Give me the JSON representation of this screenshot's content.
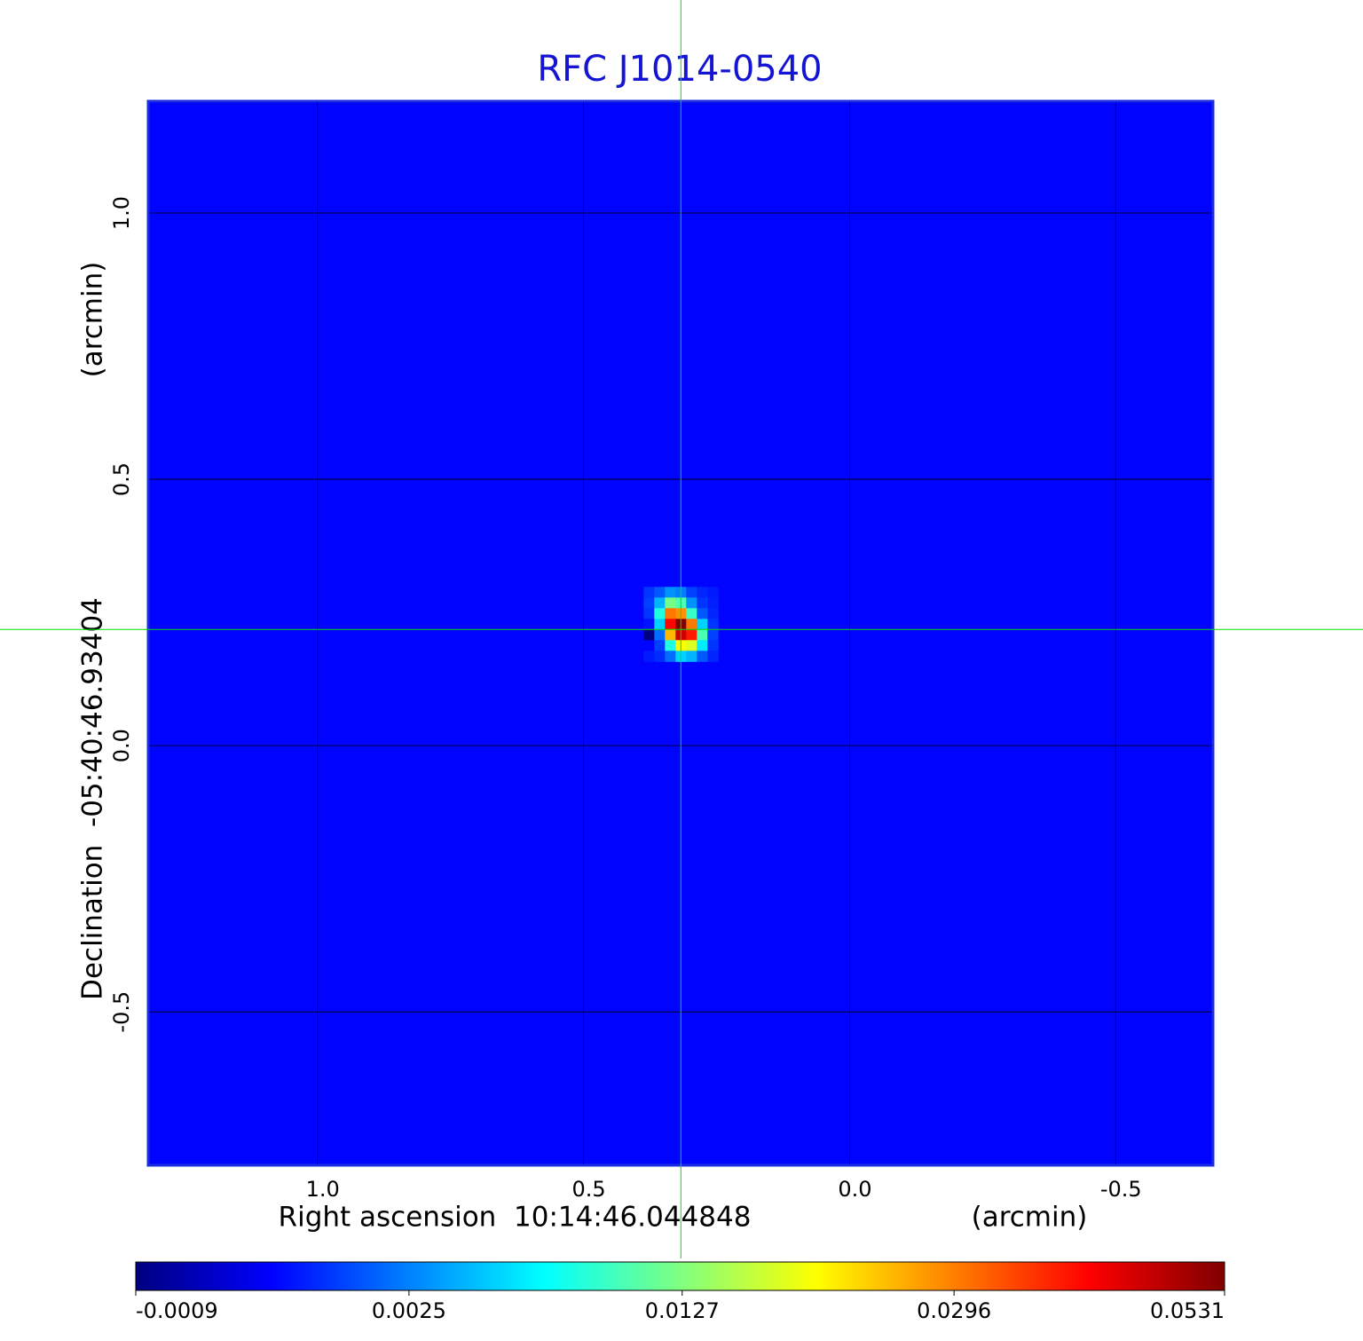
{
  "chart_data": {
    "type": "image",
    "title": "RFC J1014-0540",
    "xlabel": "Right ascension  10:14:46.044848",
    "xunit": "(arcmin)",
    "ylabel": "Declination  -05:40:46.93404",
    "yunit": "(arcmin)",
    "xlim": [
      1.318,
      -0.683
    ],
    "ylim": [
      -0.788,
      1.21
    ],
    "xticks": [
      {
        "value": 1,
        "label": "1.0"
      },
      0.5,
      {
        "value": 0,
        "label": "0.0"
      },
      -0.5
    ],
    "yticks": [
      {
        "value": 1,
        "label": "1.0"
      },
      0.5,
      {
        "value": 0,
        "label": "0.0"
      },
      -0.5
    ],
    "grid": true,
    "colormap": "jet",
    "stretch": "sqrt",
    "title_color": "#1414d2",
    "frame_color": "#1a2ee0",
    "crosshair": {
      "x": 0.317,
      "y": 0.218,
      "color": "#00e000"
    },
    "image": {
      "background": 0.0,
      "pixel_size": 0.02,
      "origin": [
        0.387,
        0.298
      ],
      "pixels": [
        [
          0.0008,
          0.0015,
          0.003,
          0.0025,
          0.001,
          0.0005,
          0.0003
        ],
        [
          0.001,
          0.004,
          0.012,
          0.01,
          0.003,
          0.0008,
          0.0004
        ],
        [
          0.0008,
          0.008,
          0.03,
          0.028,
          0.009,
          0.0015,
          0.0005
        ],
        [
          0.0002,
          0.005,
          0.04,
          0.0531,
          0.03,
          0.005,
          0.0008
        ],
        [
          -0.0009,
          0.002,
          0.025,
          0.045,
          0.038,
          0.01,
          0.001
        ],
        [
          0.0,
          0.001,
          0.008,
          0.02,
          0.018,
          0.006,
          0.0008
        ],
        [
          0.0003,
          0.0006,
          0.002,
          0.005,
          0.004,
          0.0015,
          0.0005
        ]
      ]
    },
    "colorbar": {
      "clim": [
        -0.0009,
        0.0531
      ],
      "ticks": [
        -0.0009,
        0.0025,
        0.0127,
        0.0296,
        0.0531
      ]
    }
  }
}
